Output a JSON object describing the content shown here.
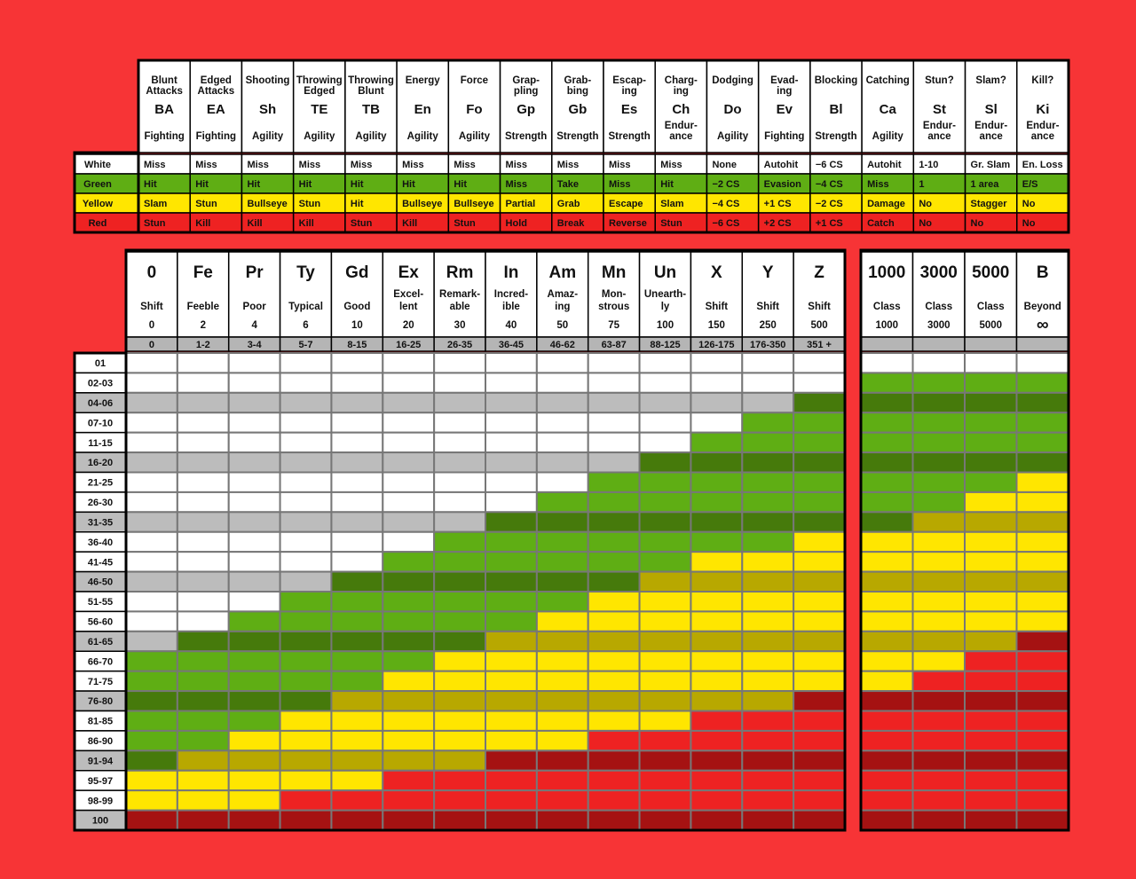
{
  "attack_table": {
    "row_labels": [
      "White",
      "Green",
      "Yellow",
      "Red"
    ],
    "columns": [
      {
        "name": [
          "Blunt",
          "Attacks"
        ],
        "abbr": "BA",
        "ability": [
          "Fighting"
        ],
        "results": [
          "Miss",
          "Hit",
          "Slam",
          "Stun"
        ]
      },
      {
        "name": [
          "Edged",
          "Attacks"
        ],
        "abbr": "EA",
        "ability": [
          "Fighting"
        ],
        "results": [
          "Miss",
          "Hit",
          "Stun",
          "Kill"
        ]
      },
      {
        "name": [
          "Shooting"
        ],
        "abbr": "Sh",
        "ability": [
          "Agility"
        ],
        "results": [
          "Miss",
          "Hit",
          "Bullseye",
          "Kill"
        ]
      },
      {
        "name": [
          "Throwing",
          "Edged"
        ],
        "abbr": "TE",
        "ability": [
          "Agility"
        ],
        "results": [
          "Miss",
          "Hit",
          "Stun",
          "Kill"
        ]
      },
      {
        "name": [
          "Throwing",
          "Blunt"
        ],
        "abbr": "TB",
        "ability": [
          "Agility"
        ],
        "results": [
          "Miss",
          "Hit",
          "Hit",
          "Stun"
        ]
      },
      {
        "name": [
          "Energy"
        ],
        "abbr": "En",
        "ability": [
          "Agility"
        ],
        "results": [
          "Miss",
          "Hit",
          "Bullseye",
          "Kill"
        ]
      },
      {
        "name": [
          "Force"
        ],
        "abbr": "Fo",
        "ability": [
          "Agility"
        ],
        "results": [
          "Miss",
          "Hit",
          "Bullseye",
          "Stun"
        ]
      },
      {
        "name": [
          "Grap-",
          "pling"
        ],
        "abbr": "Gp",
        "ability": [
          "Strength"
        ],
        "results": [
          "Miss",
          "Miss",
          "Partial",
          "Hold"
        ]
      },
      {
        "name": [
          "Grab-",
          "bing"
        ],
        "abbr": "Gb",
        "ability": [
          "Strength"
        ],
        "results": [
          "Miss",
          "Take",
          "Grab",
          "Break"
        ]
      },
      {
        "name": [
          "Escap-",
          "ing"
        ],
        "abbr": "Es",
        "ability": [
          "Strength"
        ],
        "results": [
          "Miss",
          "Miss",
          "Escape",
          "Reverse"
        ]
      },
      {
        "name": [
          "Charg-",
          "ing"
        ],
        "abbr": "Ch",
        "ability": [
          "Endur-",
          "ance"
        ],
        "results": [
          "Miss",
          "Hit",
          "Slam",
          "Stun"
        ]
      },
      {
        "name": [
          "Dodging"
        ],
        "abbr": "Do",
        "ability": [
          "Agility"
        ],
        "results": [
          "None",
          "−2 CS",
          "−4 CS",
          "−6 CS"
        ]
      },
      {
        "name": [
          "Evad-",
          "ing"
        ],
        "abbr": "Ev",
        "ability": [
          "Fighting"
        ],
        "results": [
          "Autohit",
          "Evasion",
          "+1 CS",
          "+2 CS"
        ]
      },
      {
        "name": [
          "Blocking"
        ],
        "abbr": "Bl",
        "ability": [
          "Strength"
        ],
        "results": [
          "−6 CS",
          "−4 CS",
          "−2 CS",
          "+1 CS"
        ]
      },
      {
        "name": [
          "Catching"
        ],
        "abbr": "Ca",
        "ability": [
          "Agility"
        ],
        "results": [
          "Autohit",
          "Miss",
          "Damage",
          "Catch"
        ]
      },
      {
        "name": [
          "Stun?"
        ],
        "abbr": "St",
        "ability": [
          "Endur-",
          "ance"
        ],
        "results": [
          "1-10",
          "1",
          "No",
          "No"
        ]
      },
      {
        "name": [
          "Slam?"
        ],
        "abbr": "Sl",
        "ability": [
          "Endur-",
          "ance"
        ],
        "results": [
          "Gr. Slam",
          "1 area",
          "Stagger",
          "No"
        ]
      },
      {
        "name": [
          "Kill?"
        ],
        "abbr": "Ki",
        "ability": [
          "Endur-",
          "ance"
        ],
        "results": [
          "En. Loss",
          "E/S",
          "No",
          "No"
        ]
      }
    ]
  },
  "rank_table": {
    "ranks": [
      {
        "abbr": "0",
        "name": [
          "Shift"
        ],
        "value": "0",
        "range": "0"
      },
      {
        "abbr": "Fe",
        "name": [
          "Feeble"
        ],
        "value": "2",
        "range": "1-2"
      },
      {
        "abbr": "Pr",
        "name": [
          "Poor"
        ],
        "value": "4",
        "range": "3-4"
      },
      {
        "abbr": "Ty",
        "name": [
          "Typical"
        ],
        "value": "6",
        "range": "5-7"
      },
      {
        "abbr": "Gd",
        "name": [
          "Good"
        ],
        "value": "10",
        "range": "8-15"
      },
      {
        "abbr": "Ex",
        "name": [
          "Excel-",
          "lent"
        ],
        "value": "20",
        "range": "16-25"
      },
      {
        "abbr": "Rm",
        "name": [
          "Remark-",
          "able"
        ],
        "value": "30",
        "range": "26-35"
      },
      {
        "abbr": "In",
        "name": [
          "Incred-",
          "ible"
        ],
        "value": "40",
        "range": "36-45"
      },
      {
        "abbr": "Am",
        "name": [
          "Amaz-",
          "ing"
        ],
        "value": "50",
        "range": "46-62"
      },
      {
        "abbr": "Mn",
        "name": [
          "Mon-",
          "strous"
        ],
        "value": "75",
        "range": "63-87"
      },
      {
        "abbr": "Un",
        "name": [
          "Unearth-",
          "ly"
        ],
        "value": "100",
        "range": "88-125"
      },
      {
        "abbr": "X",
        "name": [
          "Shift"
        ],
        "value": "150",
        "range": "126-175"
      },
      {
        "abbr": "Y",
        "name": [
          "Shift"
        ],
        "value": "250",
        "range": "176-350"
      },
      {
        "abbr": "Z",
        "name": [
          "Shift"
        ],
        "value": "500",
        "range": "351 +"
      }
    ],
    "class_ranks": [
      {
        "abbr": "1000",
        "name": [
          "Class"
        ],
        "value": "1000"
      },
      {
        "abbr": "3000",
        "name": [
          "Class"
        ],
        "value": "3000"
      },
      {
        "abbr": "5000",
        "name": [
          "Class"
        ],
        "value": "5000"
      },
      {
        "abbr": "B",
        "name": [
          "Beyond"
        ],
        "value": "∞"
      }
    ],
    "rolls": [
      "01",
      "02-03",
      "04-06",
      "07-10",
      "11-15",
      "16-20",
      "21-25",
      "26-30",
      "31-35",
      "36-40",
      "41-45",
      "46-50",
      "51-55",
      "56-60",
      "61-65",
      "66-70",
      "71-75",
      "76-80",
      "81-85",
      "86-90",
      "91-94",
      "95-97",
      "98-99",
      "100"
    ],
    "grid": [
      "WWWWWWWWWWWWWWWWWW",
      "WWWWWWWWWWWWWWGGGG",
      "wwwwwwwwwwwwwggggg",
      "WWWWWWWWWWWWGGGGGG",
      "WWWWWWWWWWWGGGGGGG",
      "wwwwwwwwwwgggggggg",
      "WWWWWWWWWGGGGGGGGY",
      "WWWWWWWWGGGGGGGGYY",
      "wwwwwwwggggggggyyy",
      "WWWWWWGGGGGGGYYYYY",
      "WWWWWGGGGGGYYYYYYY",
      "wwwwggggggyyyyyyyy",
      "WWWGGGGGGYYYYYYYYY",
      "WWGGGGGGYYYYYYYYYY",
      "wggggggyyyyyyyyyyr",
      "GGGGGGYYYYYYYYYYRR",
      "GGGGGYYYYYYYYYYRRR",
      "ggggyyyyyyyyyrrrrr",
      "GGGYYYYYYYYRRRRRRR",
      "GGYYYYYYYRRRRRRRRR",
      "gyyyyyyrrrrrrrrrrr",
      "YYYYYRRRRRRRRRRRRR",
      "YYYRRRRRRRRRRRRRRR",
      "rrrrrrrrrrrrrrrrrr"
    ],
    "colors": {
      "W": "#ffffff",
      "w": "#bcbcbc",
      "G": "#5fae14",
      "g": "#467a0b",
      "Y": "#ffe600",
      "y": "#b8a800",
      "R": "#ee2222",
      "r": "#a51212"
    }
  }
}
